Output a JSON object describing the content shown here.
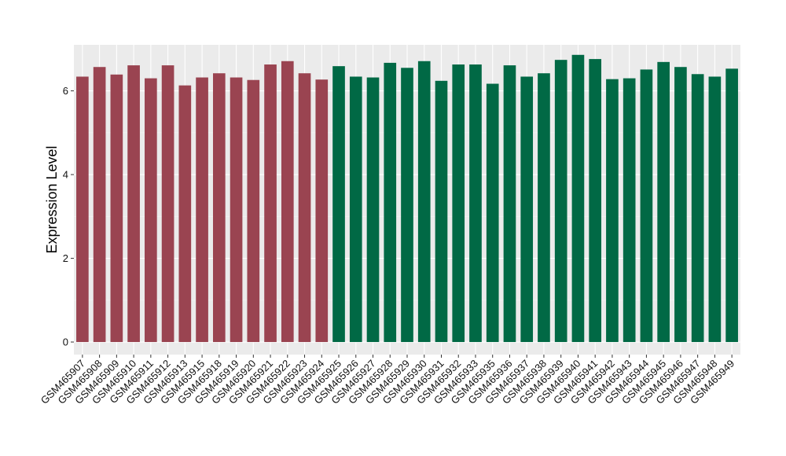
{
  "chart_data": {
    "type": "bar",
    "title": "",
    "xlabel": "",
    "ylabel": "Expression Level",
    "ylim": [
      -0.3,
      7.1
    ],
    "yticks": [
      0,
      2,
      4,
      6
    ],
    "grid": true,
    "legend": "none",
    "colors": {
      "group1": "#9A4451",
      "group2": "#016945",
      "panel_bg": "#EBEBEB",
      "grid_major": "#FFFFFF"
    },
    "categories": [
      "GSM465907",
      "GSM465908",
      "GSM465909",
      "GSM465910",
      "GSM465911",
      "GSM465912",
      "GSM465913",
      "GSM465915",
      "GSM465918",
      "GSM465919",
      "GSM465920",
      "GSM465921",
      "GSM465922",
      "GSM465923",
      "GSM465924",
      "GSM465925",
      "GSM465926",
      "GSM465927",
      "GSM465928",
      "GSM465929",
      "GSM465930",
      "GSM465931",
      "GSM465932",
      "GSM465933",
      "GSM465935",
      "GSM465936",
      "GSM465937",
      "GSM465938",
      "GSM465939",
      "GSM465940",
      "GSM465941",
      "GSM465942",
      "GSM465943",
      "GSM465944",
      "GSM465945",
      "GSM465946",
      "GSM465947",
      "GSM465948",
      "GSM465949"
    ],
    "values": [
      6.34,
      6.57,
      6.39,
      6.61,
      6.3,
      6.61,
      6.13,
      6.32,
      6.42,
      6.32,
      6.26,
      6.63,
      6.71,
      6.42,
      6.27,
      6.59,
      6.34,
      6.32,
      6.67,
      6.55,
      6.71,
      6.24,
      6.63,
      6.63,
      6.17,
      6.61,
      6.34,
      6.42,
      6.74,
      6.86,
      6.76,
      6.28,
      6.3,
      6.51,
      6.69,
      6.57,
      6.4,
      6.34,
      6.53
    ],
    "group_of_bar": [
      "group1",
      "group1",
      "group1",
      "group1",
      "group1",
      "group1",
      "group1",
      "group1",
      "group1",
      "group1",
      "group1",
      "group1",
      "group1",
      "group1",
      "group1",
      "group2",
      "group2",
      "group2",
      "group2",
      "group2",
      "group2",
      "group2",
      "group2",
      "group2",
      "group2",
      "group2",
      "group2",
      "group2",
      "group2",
      "group2",
      "group2",
      "group2",
      "group2",
      "group2",
      "group2",
      "group2",
      "group2",
      "group2",
      "group2"
    ]
  }
}
